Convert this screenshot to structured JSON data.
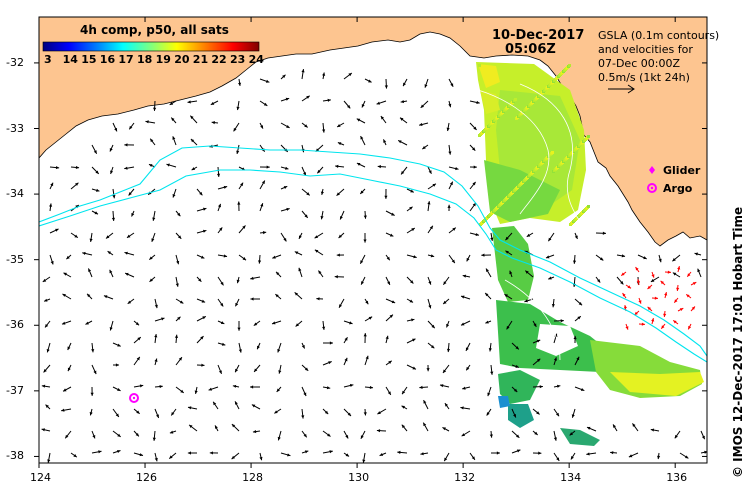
{
  "colorbar": {
    "title": "4h comp, p50, all sats",
    "labels": [
      "3",
      "14",
      "15",
      "16",
      "17",
      "18",
      "19",
      "20",
      "21",
      "22",
      "23",
      "24"
    ],
    "gradient": [
      "#00007f",
      "#0000ff",
      "#007fff",
      "#00ffff",
      "#7fff7f",
      "#ffff00",
      "#ff7f00",
      "#ff0000",
      "#7f0000"
    ]
  },
  "date": {
    "line1": "10-Dec-2017",
    "line2": "05:06Z"
  },
  "gsla_legend": {
    "line1": "GSLA (0.1m contours)",
    "line2": "and velocities for",
    "line3": "07-Dec 00:00Z",
    "line4": "0.5m/s (1kt 24h)"
  },
  "markers": {
    "glider_label": "Glider",
    "argo_label": "Argo",
    "glider_color": "#ff00ff",
    "argo_color": "#ff00ff"
  },
  "axes": {
    "x_ticks": [
      "124",
      "126",
      "128",
      "130",
      "132",
      "134",
      "136"
    ],
    "y_ticks": [
      "-32",
      "-33",
      "-34",
      "-35",
      "-36",
      "-37",
      "-38"
    ],
    "x_range": [
      124,
      136.6
    ],
    "y_range": [
      -38.1,
      -31.3
    ]
  },
  "credit": "© IMOS 12-Dec-2017 17:01 Hobart Time",
  "colors": {
    "land": "#fdc590",
    "ocean": "#ffffff",
    "contour": "#00e5ee",
    "arrow": "#000000",
    "velocity_arrow_red": "#ff0000"
  },
  "argo_float": {
    "lon": 125.8,
    "lat": -37.12
  }
}
